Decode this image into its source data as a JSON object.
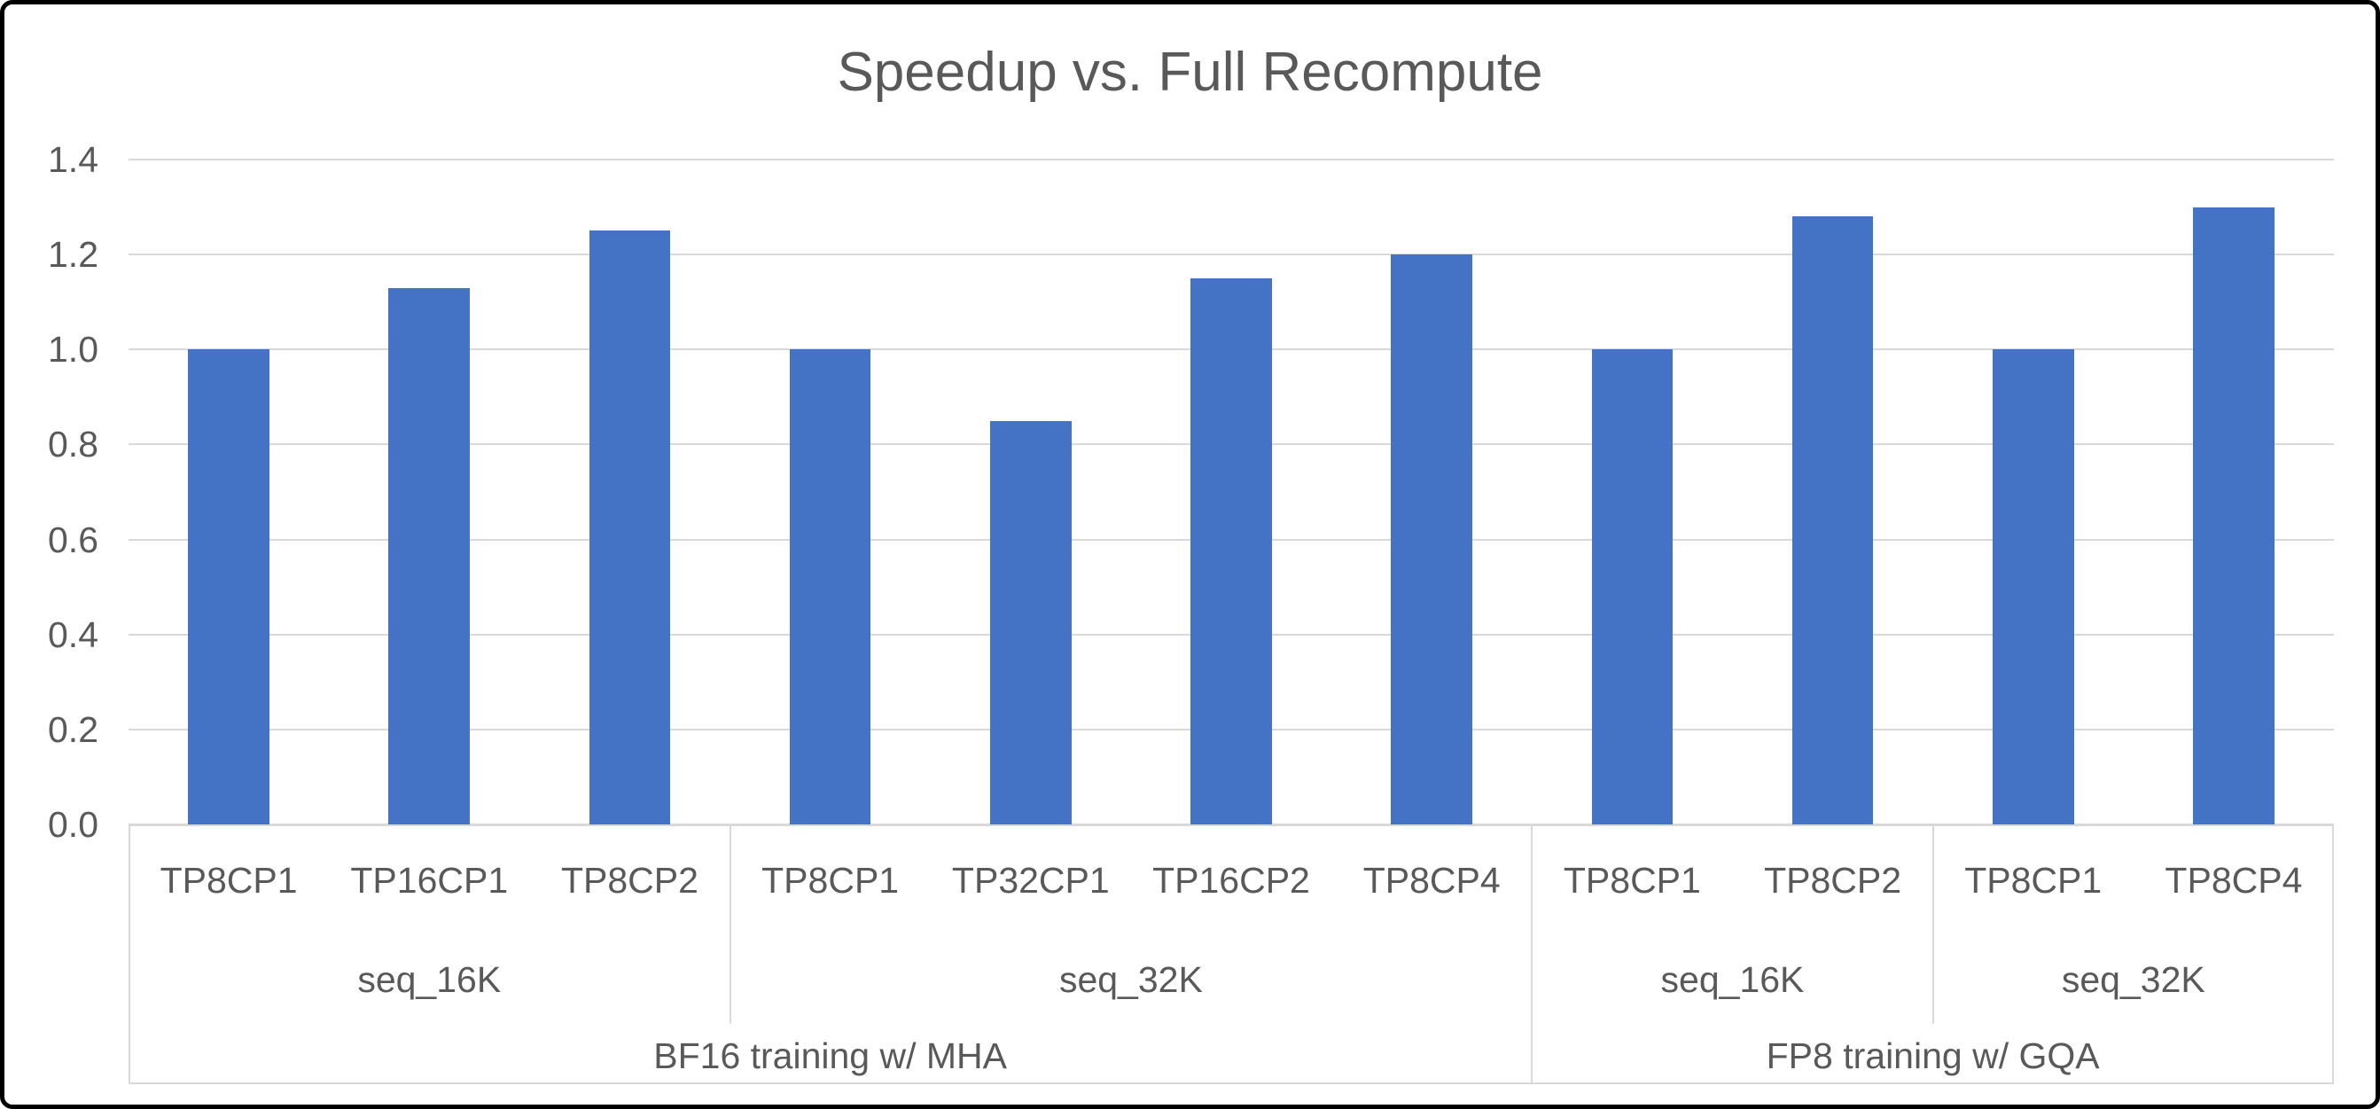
{
  "chart_data": {
    "type": "bar",
    "title": "Speedup vs. Full Recompute",
    "xlabel": "",
    "ylabel": "",
    "ylim": [
      0.0,
      1.4
    ],
    "ytick_step": 0.2,
    "ytick_labels": [
      "0.0",
      "0.2",
      "0.4",
      "0.6",
      "0.8",
      "1.0",
      "1.2",
      "1.4"
    ],
    "grid": true,
    "legend": "none",
    "categories": [
      "TP8CP1",
      "TP16CP1",
      "TP8CP2",
      "TP8CP1",
      "TP32CP1",
      "TP16CP2",
      "TP8CP4",
      "TP8CP1",
      "TP8CP2",
      "TP8CP1",
      "TP8CP4"
    ],
    "values": [
      1.0,
      1.13,
      1.25,
      1.0,
      0.85,
      1.15,
      1.2,
      1.0,
      1.28,
      1.0,
      1.3
    ],
    "group_level_seq": [
      {
        "label": "seq_16K",
        "span": 3
      },
      {
        "label": "seq_32K",
        "span": 4
      },
      {
        "label": "seq_16K",
        "span": 2
      },
      {
        "label": "seq_32K",
        "span": 2
      }
    ],
    "group_level_training": [
      {
        "label": "BF16 training w/ MHA",
        "span": 7
      },
      {
        "label": "FP8 training w/ GQA",
        "span": 4
      }
    ]
  },
  "colors": {
    "bar": "#4472C4",
    "text": "#595959",
    "gridline": "#D9D9D9",
    "frame": "#000000"
  }
}
